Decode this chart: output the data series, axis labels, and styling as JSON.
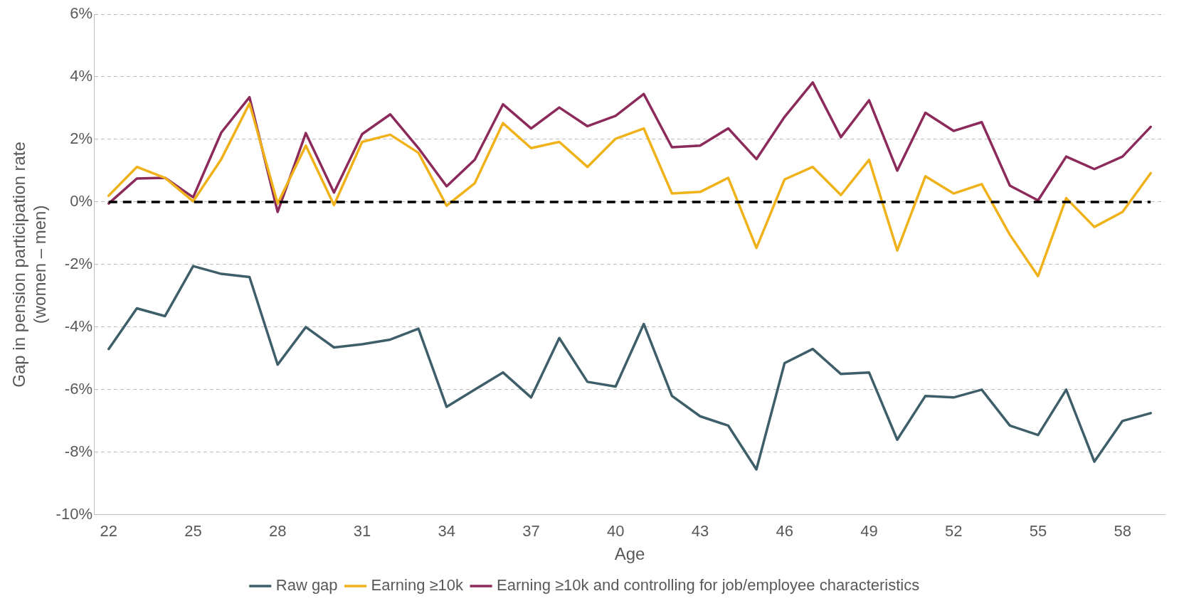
{
  "chart_data": {
    "type": "line",
    "xlabel": "Age",
    "ylabel": "Gap in pension participation rate\n(women – men)",
    "categories": [
      "22",
      null,
      null,
      "25",
      null,
      null,
      "28",
      null,
      null,
      "31",
      null,
      null,
      "34",
      null,
      null,
      "37",
      null,
      null,
      "40",
      null,
      null,
      "43",
      null,
      null,
      "46",
      null,
      null,
      "49",
      null,
      null,
      "52",
      null,
      null,
      "55",
      null,
      null,
      "58",
      null
    ],
    "series": [
      {
        "name": "Raw gap",
        "color": "#3e5f69",
        "values": [
          -4.7,
          -3.4,
          -3.65,
          -2.05,
          -2.3,
          -2.4,
          -5.2,
          -4.0,
          -4.65,
          -4.55,
          -4.4,
          -4.05,
          -6.55,
          -6.0,
          -5.45,
          -6.25,
          -4.35,
          -5.75,
          -5.9,
          -3.9,
          -6.2,
          -6.85,
          -7.15,
          -8.55,
          -5.15,
          -4.7,
          -5.5,
          -5.45,
          -7.6,
          -6.2,
          -6.25,
          -6.0,
          -7.15,
          -7.45,
          -6.0,
          -8.3,
          -7.0,
          -6.75
        ]
      },
      {
        "name": "Earning ≥10k",
        "color": "#f0b21a",
        "values": [
          0.2,
          1.12,
          0.77,
          0.02,
          1.37,
          3.15,
          -0.05,
          1.8,
          -0.1,
          1.92,
          2.15,
          1.57,
          -0.12,
          0.6,
          2.52,
          1.72,
          1.92,
          1.12,
          2.02,
          2.35,
          0.27,
          0.32,
          0.77,
          -1.47,
          0.72,
          1.12,
          0.22,
          1.35,
          -1.55,
          0.82,
          0.27,
          0.57,
          -1.05,
          -2.37,
          0.12,
          -0.8,
          -0.32,
          0.92
        ]
      },
      {
        "name": "Earning ≥10k and controlling for job/employee characteristics",
        "color": "#8b2a5b",
        "values": [
          -0.05,
          0.75,
          0.77,
          0.15,
          2.22,
          3.35,
          -0.32,
          2.2,
          0.3,
          2.17,
          2.8,
          1.72,
          0.5,
          1.35,
          3.12,
          2.35,
          3.02,
          2.42,
          2.75,
          3.45,
          1.75,
          1.8,
          2.35,
          1.37,
          2.72,
          3.82,
          2.07,
          3.25,
          1.0,
          2.85,
          2.27,
          2.55,
          0.52,
          0.05,
          1.45,
          1.05,
          1.45,
          2.4
        ]
      }
    ],
    "ylim": [
      -10,
      6
    ],
    "yticks": [
      {
        "value": -10,
        "label": "-10%"
      },
      {
        "value": -8,
        "label": "-8%"
      },
      {
        "value": -6,
        "label": "-6%"
      },
      {
        "value": -4,
        "label": "-4%"
      },
      {
        "value": -2,
        "label": "-2%"
      },
      {
        "value": 0,
        "label": "0%"
      },
      {
        "value": 2,
        "label": "2%"
      },
      {
        "value": 4,
        "label": "4%"
      },
      {
        "value": 6,
        "label": "6%"
      }
    ],
    "grid": "y",
    "legend": "bottom",
    "marker": "none",
    "line_style": "solid",
    "ref_lines": [
      {
        "axis": "y",
        "value": 0,
        "label": null,
        "color": "#000000",
        "line_style": "dashed"
      }
    ]
  }
}
